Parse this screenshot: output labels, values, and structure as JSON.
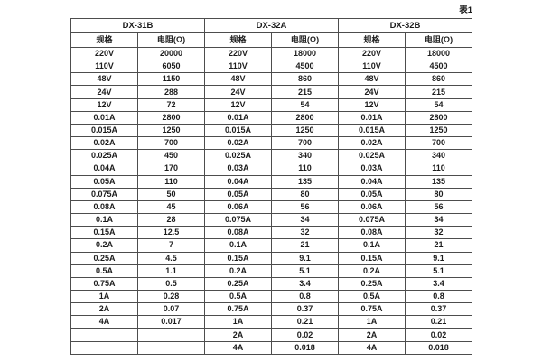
{
  "caption": "表1",
  "table": {
    "groups": [
      {
        "name": "DX-31B",
        "headers": [
          "规格",
          "电阻(Ω)"
        ],
        "rows": [
          [
            "220V",
            "20000"
          ],
          [
            "110V",
            "6050"
          ],
          [
            "48V",
            "1150"
          ],
          [
            "24V",
            "288"
          ],
          [
            "12V",
            "72"
          ],
          [
            "0.01A",
            "2800"
          ],
          [
            "0.015A",
            "1250"
          ],
          [
            "0.02A",
            "700"
          ],
          [
            "0.025A",
            "450"
          ],
          [
            "0.04A",
            "170"
          ],
          [
            "0.05A",
            "110"
          ],
          [
            "0.075A",
            "50"
          ],
          [
            "0.08A",
            "45"
          ],
          [
            "0.1A",
            "28"
          ],
          [
            "0.15A",
            "12.5"
          ],
          [
            "0.2A",
            "7"
          ],
          [
            "0.25A",
            "4.5"
          ],
          [
            "0.5A",
            "1.1"
          ],
          [
            "0.75A",
            "0.5"
          ],
          [
            "1A",
            "0.28"
          ],
          [
            "2A",
            "0.07"
          ],
          [
            "4A",
            "0.017"
          ],
          [
            "",
            ""
          ],
          [
            "",
            ""
          ]
        ]
      },
      {
        "name": "DX-32A",
        "headers": [
          "规格",
          "电阻(Ω)"
        ],
        "rows": [
          [
            "220V",
            "18000"
          ],
          [
            "110V",
            "4500"
          ],
          [
            "48V",
            "860"
          ],
          [
            "24V",
            "215"
          ],
          [
            "12V",
            "54"
          ],
          [
            "0.01A",
            "2800"
          ],
          [
            "0.015A",
            "1250"
          ],
          [
            "0.02A",
            "700"
          ],
          [
            "0.025A",
            "340"
          ],
          [
            "0.03A",
            "110"
          ],
          [
            "0.04A",
            "135"
          ],
          [
            "0.05A",
            "80"
          ],
          [
            "0.06A",
            "56"
          ],
          [
            "0.075A",
            "34"
          ],
          [
            "0.08A",
            "32"
          ],
          [
            "0.1A",
            "21"
          ],
          [
            "0.15A",
            "9.1"
          ],
          [
            "0.2A",
            "5.1"
          ],
          [
            "0.25A",
            "3.4"
          ],
          [
            "0.5A",
            "0.8"
          ],
          [
            "0.75A",
            "0.37"
          ],
          [
            "1A",
            "0.21"
          ],
          [
            "2A",
            "0.02"
          ],
          [
            "4A",
            "0.018"
          ]
        ]
      },
      {
        "name": "DX-32B",
        "headers": [
          "规格",
          "电阻(Ω)"
        ],
        "rows": [
          [
            "220V",
            "18000"
          ],
          [
            "110V",
            "4500"
          ],
          [
            "48V",
            "860"
          ],
          [
            "24V",
            "215"
          ],
          [
            "12V",
            "54"
          ],
          [
            "0.01A",
            "2800"
          ],
          [
            "0.015A",
            "1250"
          ],
          [
            "0.02A",
            "700"
          ],
          [
            "0.025A",
            "340"
          ],
          [
            "0.03A",
            "110"
          ],
          [
            "0.04A",
            "135"
          ],
          [
            "0.05A",
            "80"
          ],
          [
            "0.06A",
            "56"
          ],
          [
            "0.075A",
            "34"
          ],
          [
            "0.08A",
            "32"
          ],
          [
            "0.1A",
            "21"
          ],
          [
            "0.15A",
            "9.1"
          ],
          [
            "0.2A",
            "5.1"
          ],
          [
            "0.25A",
            "3.4"
          ],
          [
            "0.5A",
            "0.8"
          ],
          [
            "0.75A",
            "0.37"
          ],
          [
            "1A",
            "0.21"
          ],
          [
            "2A",
            "0.02"
          ],
          [
            "4A",
            "0.018"
          ]
        ]
      }
    ]
  }
}
